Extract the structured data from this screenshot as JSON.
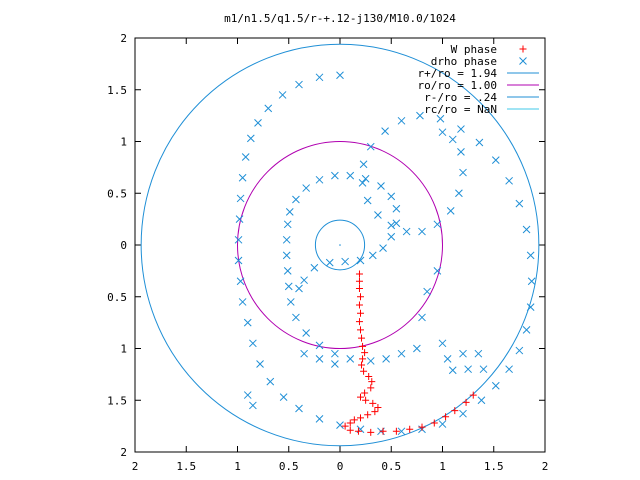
{
  "chart_data": {
    "type": "scatter",
    "title": "m1/n1.5/q1.5/r-+.12-j130/M10.0/1024",
    "xlim": [
      2,
      -2
    ],
    "ylim": [
      2,
      -2
    ],
    "grid": false,
    "legend_position": "top-right",
    "x_ticks": [
      2,
      1.5,
      1,
      0.5,
      0,
      0.5,
      1,
      1.5,
      2
    ],
    "x_tick_values": [
      2,
      1.5,
      1,
      0.5,
      0,
      -0.5,
      -1,
      -1.5,
      -2
    ],
    "y_ticks": [
      2,
      1.5,
      1,
      0.5,
      0,
      0.5,
      1,
      1.5,
      2
    ],
    "y_tick_values": [
      2,
      1.5,
      1,
      0.5,
      0,
      -0.5,
      -1,
      -1.5,
      -2
    ],
    "series": [
      {
        "name": "W phase",
        "type": "scatter",
        "marker": "+",
        "color": "#ff0000",
        "points": [
          [
            0.19,
            -0.28
          ],
          [
            0.19,
            -0.35
          ],
          [
            0.19,
            -0.42
          ],
          [
            0.2,
            -0.5
          ],
          [
            0.19,
            -0.58
          ],
          [
            0.2,
            -0.66
          ],
          [
            0.19,
            -0.74
          ],
          [
            0.2,
            -0.82
          ],
          [
            0.21,
            -0.9
          ],
          [
            0.22,
            -0.98
          ],
          [
            0.24,
            -1.04
          ],
          [
            0.22,
            -1.1
          ],
          [
            0.21,
            -1.16
          ],
          [
            0.23,
            -1.22
          ],
          [
            0.28,
            -1.27
          ],
          [
            0.31,
            -1.32
          ],
          [
            0.3,
            -1.38
          ],
          [
            0.24,
            -1.43
          ],
          [
            0.2,
            -1.47
          ],
          [
            0.25,
            -1.5
          ],
          [
            0.32,
            -1.53
          ],
          [
            0.37,
            -1.57
          ],
          [
            0.34,
            -1.61
          ],
          [
            0.27,
            -1.64
          ],
          [
            0.2,
            -1.67
          ],
          [
            0.14,
            -1.69
          ],
          [
            0.1,
            -1.72
          ],
          [
            0.05,
            -1.75
          ],
          [
            0.1,
            -1.79
          ],
          [
            0.18,
            -1.8
          ],
          [
            0.3,
            -1.81
          ],
          [
            0.42,
            -1.8
          ],
          [
            0.55,
            -1.8
          ],
          [
            0.68,
            -1.78
          ],
          [
            0.8,
            -1.76
          ],
          [
            0.92,
            -1.72
          ],
          [
            1.03,
            -1.66
          ],
          [
            1.12,
            -1.6
          ],
          [
            1.23,
            -1.52
          ],
          [
            1.3,
            -1.45
          ]
        ]
      },
      {
        "name": "drho phase",
        "type": "scatter",
        "marker": "x",
        "color": "#1f8fd6",
        "points": [
          [
            0.0,
            1.64
          ],
          [
            -0.2,
            1.62
          ],
          [
            -0.4,
            1.55
          ],
          [
            -0.56,
            1.45
          ],
          [
            -0.7,
            1.32
          ],
          [
            -0.8,
            1.18
          ],
          [
            -0.87,
            1.03
          ],
          [
            -0.92,
            0.85
          ],
          [
            -0.95,
            0.65
          ],
          [
            -0.97,
            0.45
          ],
          [
            -0.98,
            0.25
          ],
          [
            -0.99,
            0.05
          ],
          [
            -0.99,
            -0.15
          ],
          [
            -0.97,
            -0.35
          ],
          [
            -0.95,
            -0.55
          ],
          [
            -0.9,
            -0.75
          ],
          [
            -0.85,
            -0.95
          ],
          [
            -0.78,
            -1.15
          ],
          [
            -0.68,
            -1.32
          ],
          [
            -0.55,
            -1.47
          ],
          [
            -0.4,
            -1.58
          ],
          [
            -0.2,
            -1.68
          ],
          [
            0.0,
            -1.74
          ],
          [
            0.2,
            -1.78
          ],
          [
            0.4,
            -1.8
          ],
          [
            0.6,
            -1.8
          ],
          [
            0.8,
            -1.78
          ],
          [
            1.0,
            -1.73
          ],
          [
            1.2,
            -1.63
          ],
          [
            1.38,
            -1.5
          ],
          [
            1.52,
            -1.36
          ],
          [
            1.65,
            -1.2
          ],
          [
            1.75,
            -1.02
          ],
          [
            1.82,
            -0.82
          ],
          [
            1.86,
            -0.6
          ],
          [
            1.87,
            -0.35
          ],
          [
            1.86,
            -0.1
          ],
          [
            1.82,
            0.15
          ],
          [
            1.75,
            0.4
          ],
          [
            1.65,
            0.62
          ],
          [
            1.52,
            0.82
          ],
          [
            1.36,
            0.99
          ],
          [
            1.18,
            1.12
          ],
          [
            0.98,
            1.22
          ],
          [
            0.78,
            1.25
          ],
          [
            0.6,
            1.2
          ],
          [
            0.44,
            1.1
          ],
          [
            0.3,
            0.95
          ],
          [
            0.23,
            0.78
          ],
          [
            0.22,
            0.6
          ],
          [
            0.27,
            0.43
          ],
          [
            0.37,
            0.29
          ],
          [
            0.5,
            0.19
          ],
          [
            0.65,
            0.13
          ],
          [
            0.8,
            0.13
          ],
          [
            0.95,
            0.2
          ],
          [
            1.08,
            0.33
          ],
          [
            1.16,
            0.5
          ],
          [
            1.2,
            0.7
          ],
          [
            1.18,
            0.9
          ],
          [
            1.1,
            1.02
          ],
          [
            1.0,
            1.09
          ],
          [
            -0.4,
            -0.42
          ],
          [
            -0.35,
            -0.34
          ],
          [
            -0.25,
            -0.22
          ],
          [
            -0.1,
            -0.17
          ],
          [
            0.05,
            -0.16
          ],
          [
            0.2,
            -0.15
          ],
          [
            0.32,
            -0.1
          ],
          [
            0.42,
            -0.03
          ],
          [
            0.5,
            0.08
          ],
          [
            0.55,
            0.21
          ],
          [
            0.55,
            0.35
          ],
          [
            0.5,
            0.47
          ],
          [
            0.4,
            0.57
          ],
          [
            0.25,
            0.64
          ],
          [
            0.1,
            0.67
          ],
          [
            -0.05,
            0.67
          ],
          [
            -0.2,
            0.63
          ],
          [
            -0.33,
            0.55
          ],
          [
            -0.43,
            0.44
          ],
          [
            -0.49,
            0.32
          ],
          [
            -0.51,
            0.2
          ],
          [
            -0.52,
            0.05
          ],
          [
            -0.52,
            -0.1
          ],
          [
            -0.51,
            -0.25
          ],
          [
            -0.5,
            -0.4
          ],
          [
            -0.48,
            -0.55
          ],
          [
            -0.43,
            -0.7
          ],
          [
            -0.33,
            -0.85
          ],
          [
            -0.2,
            -0.97
          ],
          [
            -0.05,
            -1.05
          ],
          [
            0.1,
            -1.1
          ],
          [
            -0.35,
            -1.05
          ],
          [
            -0.2,
            -1.1
          ],
          [
            -0.05,
            -1.15
          ],
          [
            -0.9,
            -1.45
          ],
          [
            -0.85,
            -1.55
          ],
          [
            0.95,
            -0.25
          ],
          [
            0.85,
            -0.45
          ],
          [
            0.8,
            -0.7
          ],
          [
            0.75,
            -1.0
          ],
          [
            0.6,
            -1.05
          ],
          [
            0.45,
            -1.1
          ],
          [
            0.3,
            -1.12
          ],
          [
            1.4,
            -1.2
          ],
          [
            1.25,
            -1.2
          ],
          [
            1.1,
            -1.21
          ],
          [
            1.0,
            -0.95
          ],
          [
            1.05,
            -1.1
          ],
          [
            1.2,
            -1.05
          ],
          [
            1.35,
            -1.05
          ]
        ]
      }
    ],
    "circles": [
      {
        "name": "r+/ro = 1.94",
        "radius": 1.94,
        "color": "#1f8fd6"
      },
      {
        "name": "ro/ro = 1.00",
        "radius": 1.0,
        "color": "#b000b0"
      },
      {
        "name": "r-/ro = .24",
        "radius": 0.24,
        "color": "#1f8fd6"
      },
      {
        "name": "rc/ro = NaN",
        "radius": null,
        "color": "#40c8e8"
      }
    ],
    "legend": [
      {
        "label": "W phase",
        "marker": "+",
        "color": "#ff0000"
      },
      {
        "label": "drho phase",
        "marker": "x",
        "color": "#1f8fd6"
      },
      {
        "label": "r+/ro = 1.94",
        "marker": "line",
        "color": "#1f8fd6"
      },
      {
        "label": "ro/ro = 1.00",
        "marker": "line",
        "color": "#b000b0"
      },
      {
        "label": "r-/ro = .24",
        "marker": "line",
        "color": "#1f8fd6"
      },
      {
        "label": "rc/ro = NaN",
        "marker": "line",
        "color": "#40c8e8"
      }
    ]
  }
}
